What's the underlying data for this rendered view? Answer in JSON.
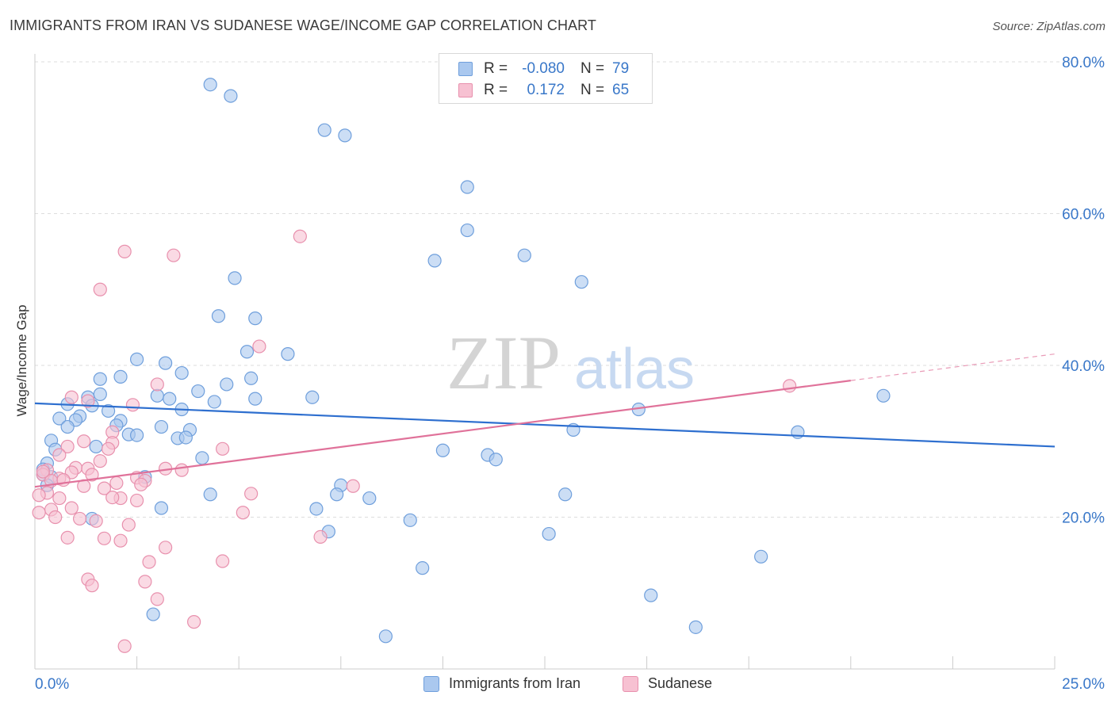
{
  "header": {
    "title": "IMMIGRANTS FROM IRAN VS SUDANESE WAGE/INCOME GAP CORRELATION CHART",
    "source": "Source: ZipAtlas.com"
  },
  "watermark": {
    "zip": "ZIP",
    "atlas": "atlas"
  },
  "legend_top": [
    {
      "r_label": "R =",
      "r_value": "-0.080",
      "n_label": "N =",
      "n_value": "79",
      "color": "#aac8ef",
      "border": "#6f9fdc"
    },
    {
      "r_label": "R =",
      "r_value": "0.172",
      "n_label": "N =",
      "n_value": "65",
      "color": "#f7c1d2",
      "border": "#e890ad"
    }
  ],
  "chart_data": {
    "type": "scatter",
    "title": "IMMIGRANTS FROM IRAN VS SUDANESE WAGE/INCOME GAP CORRELATION CHART",
    "xlabel": "",
    "ylabel": "Wage/Income Gap",
    "xlim": [
      0,
      25
    ],
    "ylim": [
      0,
      80
    ],
    "x_ticks": [
      {
        "value": 0,
        "label": "0.0%"
      },
      {
        "value": 25,
        "label": "25.0%"
      }
    ],
    "y_ticks": [
      {
        "value": 20,
        "label": "20.0%"
      },
      {
        "value": 40,
        "label": "40.0%"
      },
      {
        "value": 60,
        "label": "60.0%"
      },
      {
        "value": 80,
        "label": "80.0%"
      }
    ],
    "grid": true,
    "legend_position": "bottom",
    "series": [
      {
        "name": "Immigrants from Iran",
        "color": "#aac8ef",
        "stroke": "#6f9fdc",
        "trend_color": "#2e6fcf",
        "trend": {
          "x0": 0,
          "y0": 35.0,
          "x1": 25,
          "y1": 29.3
        },
        "points": [
          [
            4.3,
            77.0
          ],
          [
            4.8,
            75.5
          ],
          [
            7.1,
            71.0
          ],
          [
            7.6,
            70.3
          ],
          [
            10.6,
            63.5
          ],
          [
            10.6,
            57.8
          ],
          [
            9.8,
            53.8
          ],
          [
            12.0,
            54.5
          ],
          [
            13.4,
            51.0
          ],
          [
            4.9,
            51.5
          ],
          [
            4.5,
            46.5
          ],
          [
            5.4,
            46.2
          ],
          [
            6.2,
            41.5
          ],
          [
            5.2,
            41.8
          ],
          [
            2.5,
            40.8
          ],
          [
            3.2,
            40.3
          ],
          [
            3.6,
            39.0
          ],
          [
            2.1,
            38.5
          ],
          [
            1.6,
            38.2
          ],
          [
            5.3,
            38.3
          ],
          [
            4.7,
            37.5
          ],
          [
            4.0,
            36.6
          ],
          [
            1.6,
            36.2
          ],
          [
            1.3,
            35.8
          ],
          [
            3.0,
            36.0
          ],
          [
            3.3,
            35.6
          ],
          [
            5.4,
            35.6
          ],
          [
            6.8,
            35.8
          ],
          [
            4.4,
            35.2
          ],
          [
            1.4,
            34.7
          ],
          [
            0.8,
            34.9
          ],
          [
            3.6,
            34.2
          ],
          [
            1.8,
            34.0
          ],
          [
            0.6,
            33.0
          ],
          [
            1.1,
            33.3
          ],
          [
            1.0,
            32.8
          ],
          [
            2.1,
            32.7
          ],
          [
            3.1,
            31.9
          ],
          [
            2.0,
            32.1
          ],
          [
            0.8,
            31.9
          ],
          [
            3.8,
            31.5
          ],
          [
            2.3,
            30.9
          ],
          [
            2.5,
            30.8
          ],
          [
            3.5,
            30.4
          ],
          [
            3.7,
            30.5
          ],
          [
            0.4,
            30.1
          ],
          [
            1.5,
            29.3
          ],
          [
            0.5,
            28.9
          ],
          [
            4.1,
            27.8
          ],
          [
            0.3,
            27.1
          ],
          [
            0.2,
            26.3
          ],
          [
            0.2,
            25.6
          ],
          [
            0.4,
            25.3
          ],
          [
            2.7,
            25.3
          ],
          [
            0.3,
            24.2
          ],
          [
            7.5,
            24.2
          ],
          [
            7.4,
            23.0
          ],
          [
            8.2,
            22.5
          ],
          [
            4.3,
            23.0
          ],
          [
            13.0,
            23.0
          ],
          [
            3.1,
            21.2
          ],
          [
            6.9,
            21.1
          ],
          [
            9.2,
            19.6
          ],
          [
            1.4,
            19.8
          ],
          [
            7.2,
            18.1
          ],
          [
            12.6,
            17.8
          ],
          [
            17.8,
            14.8
          ],
          [
            9.5,
            13.3
          ],
          [
            15.1,
            9.7
          ],
          [
            2.9,
            7.2
          ],
          [
            8.6,
            4.3
          ],
          [
            16.2,
            5.5
          ],
          [
            10.0,
            28.8
          ],
          [
            11.1,
            28.2
          ],
          [
            11.3,
            27.6
          ],
          [
            13.2,
            31.5
          ],
          [
            14.8,
            34.2
          ],
          [
            18.7,
            31.2
          ],
          [
            20.8,
            36.0
          ]
        ]
      },
      {
        "name": "Sudanese",
        "color": "#f7c1d2",
        "stroke": "#e890ad",
        "trend_color": "#e0729a",
        "trend": {
          "x0": 0,
          "y0": 24.0,
          "x1": 20.0,
          "y1": 38.0
        },
        "trend_dashed_to": {
          "x": 25,
          "y": 41.5
        },
        "points": [
          [
            6.5,
            57.0
          ],
          [
            2.2,
            55.0
          ],
          [
            3.4,
            54.5
          ],
          [
            1.6,
            50.0
          ],
          [
            5.5,
            42.5
          ],
          [
            3.0,
            37.5
          ],
          [
            0.9,
            35.8
          ],
          [
            1.3,
            35.3
          ],
          [
            2.4,
            34.8
          ],
          [
            18.5,
            37.3
          ],
          [
            1.9,
            31.2
          ],
          [
            1.2,
            30.0
          ],
          [
            1.9,
            29.8
          ],
          [
            0.8,
            29.3
          ],
          [
            4.6,
            29.0
          ],
          [
            1.8,
            29.0
          ],
          [
            0.6,
            28.2
          ],
          [
            1.6,
            27.4
          ],
          [
            1.0,
            26.5
          ],
          [
            0.3,
            26.2
          ],
          [
            1.3,
            26.4
          ],
          [
            3.2,
            26.4
          ],
          [
            3.6,
            26.2
          ],
          [
            0.2,
            25.6
          ],
          [
            0.9,
            25.9
          ],
          [
            0.6,
            25.1
          ],
          [
            1.4,
            25.6
          ],
          [
            2.5,
            25.2
          ],
          [
            0.4,
            24.8
          ],
          [
            2.7,
            24.8
          ],
          [
            0.7,
            24.9
          ],
          [
            2.0,
            24.5
          ],
          [
            2.6,
            24.3
          ],
          [
            7.8,
            24.1
          ],
          [
            1.2,
            24.1
          ],
          [
            1.7,
            23.8
          ],
          [
            0.3,
            23.2
          ],
          [
            5.3,
            23.1
          ],
          [
            0.6,
            22.5
          ],
          [
            2.1,
            22.5
          ],
          [
            1.9,
            22.6
          ],
          [
            2.5,
            22.2
          ],
          [
            0.9,
            21.2
          ],
          [
            0.4,
            21.0
          ],
          [
            5.1,
            20.6
          ],
          [
            0.1,
            20.6
          ],
          [
            0.5,
            20.0
          ],
          [
            1.1,
            19.8
          ],
          [
            1.5,
            19.5
          ],
          [
            2.3,
            19.0
          ],
          [
            7.0,
            17.4
          ],
          [
            0.8,
            17.3
          ],
          [
            1.7,
            17.2
          ],
          [
            2.1,
            16.9
          ],
          [
            3.2,
            16.0
          ],
          [
            4.6,
            14.2
          ],
          [
            2.8,
            14.1
          ],
          [
            1.3,
            11.8
          ],
          [
            1.4,
            11.0
          ],
          [
            2.7,
            11.5
          ],
          [
            3.0,
            9.2
          ],
          [
            3.9,
            6.2
          ],
          [
            2.2,
            3.0
          ],
          [
            0.1,
            22.9
          ],
          [
            0.2,
            26.0
          ]
        ]
      }
    ]
  }
}
